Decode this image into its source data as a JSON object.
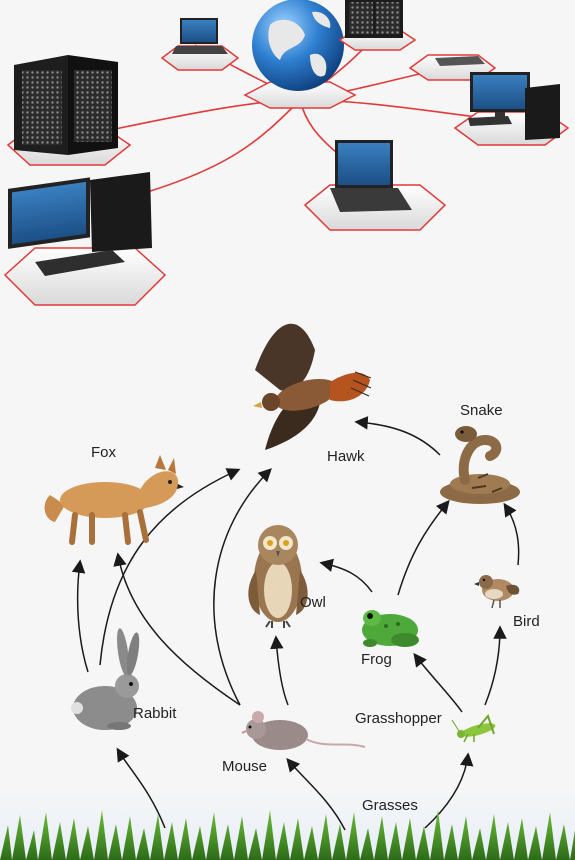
{
  "food_web": {
    "organisms": {
      "hawk": "Hawk",
      "snake": "Snake",
      "fox": "Fox",
      "owl": "Owl",
      "frog": "Frog",
      "bird": "Bird",
      "rabbit": "Rabbit",
      "mouse": "Mouse",
      "grasshopper": "Grasshopper",
      "grasses": "Grasses"
    },
    "links": [
      [
        "grasses",
        "rabbit"
      ],
      [
        "grasses",
        "mouse"
      ],
      [
        "grasses",
        "grasshopper"
      ],
      [
        "rabbit",
        "fox"
      ],
      [
        "rabbit",
        "hawk"
      ],
      [
        "mouse",
        "fox"
      ],
      [
        "mouse",
        "hawk"
      ],
      [
        "mouse",
        "owl"
      ],
      [
        "grasshopper",
        "frog"
      ],
      [
        "grasshopper",
        "bird"
      ],
      [
        "frog",
        "owl"
      ],
      [
        "frog",
        "snake"
      ],
      [
        "bird",
        "snake"
      ],
      [
        "snake",
        "hawk"
      ]
    ]
  },
  "colors": {
    "background": "#f6f6f6",
    "network_cable": "#e03a3a",
    "globe": "#2f7fd1",
    "arrow": "#1a1a1a",
    "grass": "#3d8a22"
  },
  "network_icons": [
    "globe-icon",
    "server-icon",
    "laptop-icon",
    "desktop-computer-icon"
  ]
}
